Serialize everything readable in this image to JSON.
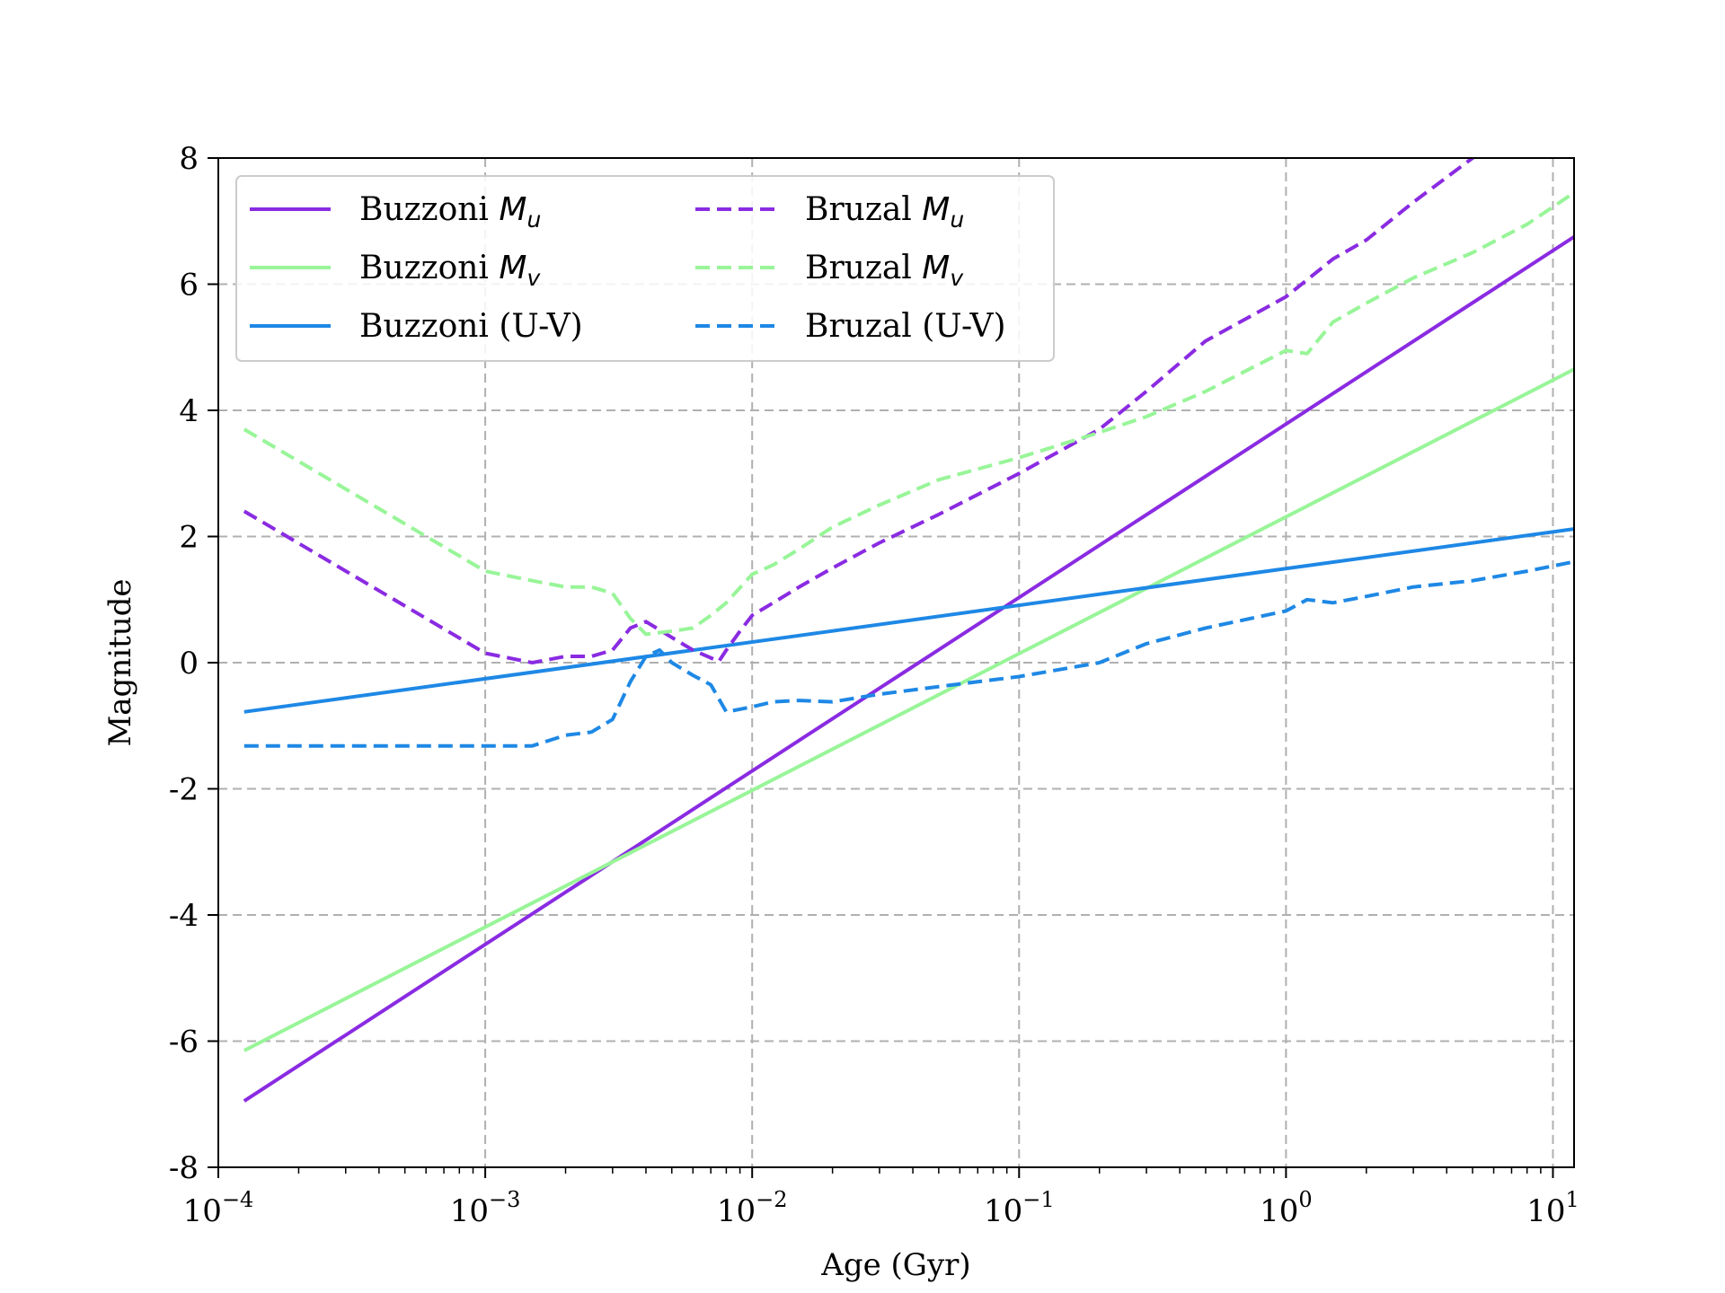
{
  "chart_data": {
    "type": "line",
    "title": "",
    "xlabel": "Age (Gyr)",
    "ylabel": "Magnitude",
    "xscale": "log",
    "xlim": [
      0.0001,
      12
    ],
    "ylim": [
      -8,
      8
    ],
    "x_ticks": [
      {
        "value": 0.0001,
        "base": "10",
        "exp": "−4"
      },
      {
        "value": 0.001,
        "base": "10",
        "exp": "−3"
      },
      {
        "value": 0.01,
        "base": "10",
        "exp": "−2"
      },
      {
        "value": 0.1,
        "base": "10",
        "exp": "−1"
      },
      {
        "value": 1,
        "base": "10",
        "exp": "0"
      },
      {
        "value": 10,
        "base": "10",
        "exp": "1"
      }
    ],
    "y_ticks": [
      {
        "value": -8,
        "label": "-8"
      },
      {
        "value": -6,
        "label": "-6"
      },
      {
        "value": -4,
        "label": "-4"
      },
      {
        "value": -2,
        "label": "-2"
      },
      {
        "value": 0,
        "label": "0"
      },
      {
        "value": 2,
        "label": "2"
      },
      {
        "value": 4,
        "label": "4"
      },
      {
        "value": 6,
        "label": "6"
      },
      {
        "value": 8,
        "label": "8"
      }
    ],
    "grid": true,
    "legend_position": "top-left",
    "legend_columns": 2,
    "series": [
      {
        "name": "Buzzoni",
        "sub": "u",
        "color": "#8a2be2",
        "style": "solid",
        "x": [
          0.000125,
          12
        ],
        "y": [
          -6.95,
          6.75
        ]
      },
      {
        "name": "Buzzoni",
        "sub": "v",
        "color": "#98f598",
        "style": "solid",
        "x": [
          0.000125,
          12
        ],
        "y": [
          -6.15,
          4.65
        ]
      },
      {
        "name": "Buzzoni (U-V)",
        "color": "#1e88e5",
        "style": "solid",
        "x": [
          0.000125,
          12
        ],
        "y": [
          -0.78,
          2.12
        ]
      },
      {
        "name": "Bruzal",
        "sub": "u",
        "color": "#8a2be2",
        "style": "dashed",
        "x": [
          0.000125,
          0.001,
          0.0015,
          0.002,
          0.0025,
          0.003,
          0.0035,
          0.004,
          0.005,
          0.006,
          0.0075,
          0.008,
          0.009,
          0.01,
          0.012,
          0.015,
          0.02,
          0.03,
          0.05,
          0.1,
          0.2,
          0.3,
          0.5,
          1,
          1.5,
          2,
          3,
          5,
          7,
          10,
          12
        ],
        "y": [
          2.4,
          0.15,
          0.0,
          0.1,
          0.1,
          0.2,
          0.55,
          0.65,
          0.4,
          0.2,
          0.02,
          0.2,
          0.5,
          0.75,
          0.95,
          1.2,
          1.5,
          1.9,
          2.35,
          3.0,
          3.7,
          4.3,
          5.1,
          5.8,
          6.4,
          6.7,
          7.3,
          8.0,
          8.35,
          8.7,
          8.9
        ]
      },
      {
        "name": "Bruzal",
        "sub": "v",
        "color": "#98f598",
        "style": "dashed",
        "x": [
          0.000125,
          0.001,
          0.0015,
          0.002,
          0.0025,
          0.003,
          0.0035,
          0.004,
          0.005,
          0.006,
          0.007,
          0.008,
          0.01,
          0.012,
          0.015,
          0.02,
          0.03,
          0.05,
          0.1,
          0.2,
          0.3,
          0.5,
          1,
          1.2,
          1.5,
          2,
          3,
          5,
          8,
          12
        ],
        "y": [
          3.7,
          1.45,
          1.3,
          1.2,
          1.2,
          1.1,
          0.7,
          0.45,
          0.5,
          0.55,
          0.75,
          0.95,
          1.4,
          1.55,
          1.8,
          2.15,
          2.5,
          2.9,
          3.25,
          3.65,
          3.9,
          4.3,
          4.95,
          4.9,
          5.4,
          5.7,
          6.1,
          6.5,
          6.95,
          7.45
        ]
      },
      {
        "name": "Bruzal (U-V)",
        "color": "#1e88e5",
        "style": "dashed",
        "x": [
          0.000125,
          0.0005,
          0.001,
          0.0015,
          0.002,
          0.0025,
          0.003,
          0.0035,
          0.004,
          0.0045,
          0.005,
          0.006,
          0.007,
          0.008,
          0.01,
          0.012,
          0.015,
          0.02,
          0.03,
          0.05,
          0.1,
          0.2,
          0.3,
          0.5,
          1,
          1.2,
          1.5,
          2,
          3,
          5,
          8,
          12
        ],
        "y": [
          -1.32,
          -1.32,
          -1.32,
          -1.32,
          -1.15,
          -1.1,
          -0.9,
          -0.3,
          0.1,
          0.2,
          0.0,
          -0.2,
          -0.35,
          -0.78,
          -0.7,
          -0.62,
          -0.6,
          -0.62,
          -0.5,
          -0.38,
          -0.22,
          0.0,
          0.3,
          0.55,
          0.82,
          1.0,
          0.95,
          1.05,
          1.2,
          1.3,
          1.45,
          1.6
        ]
      }
    ]
  }
}
